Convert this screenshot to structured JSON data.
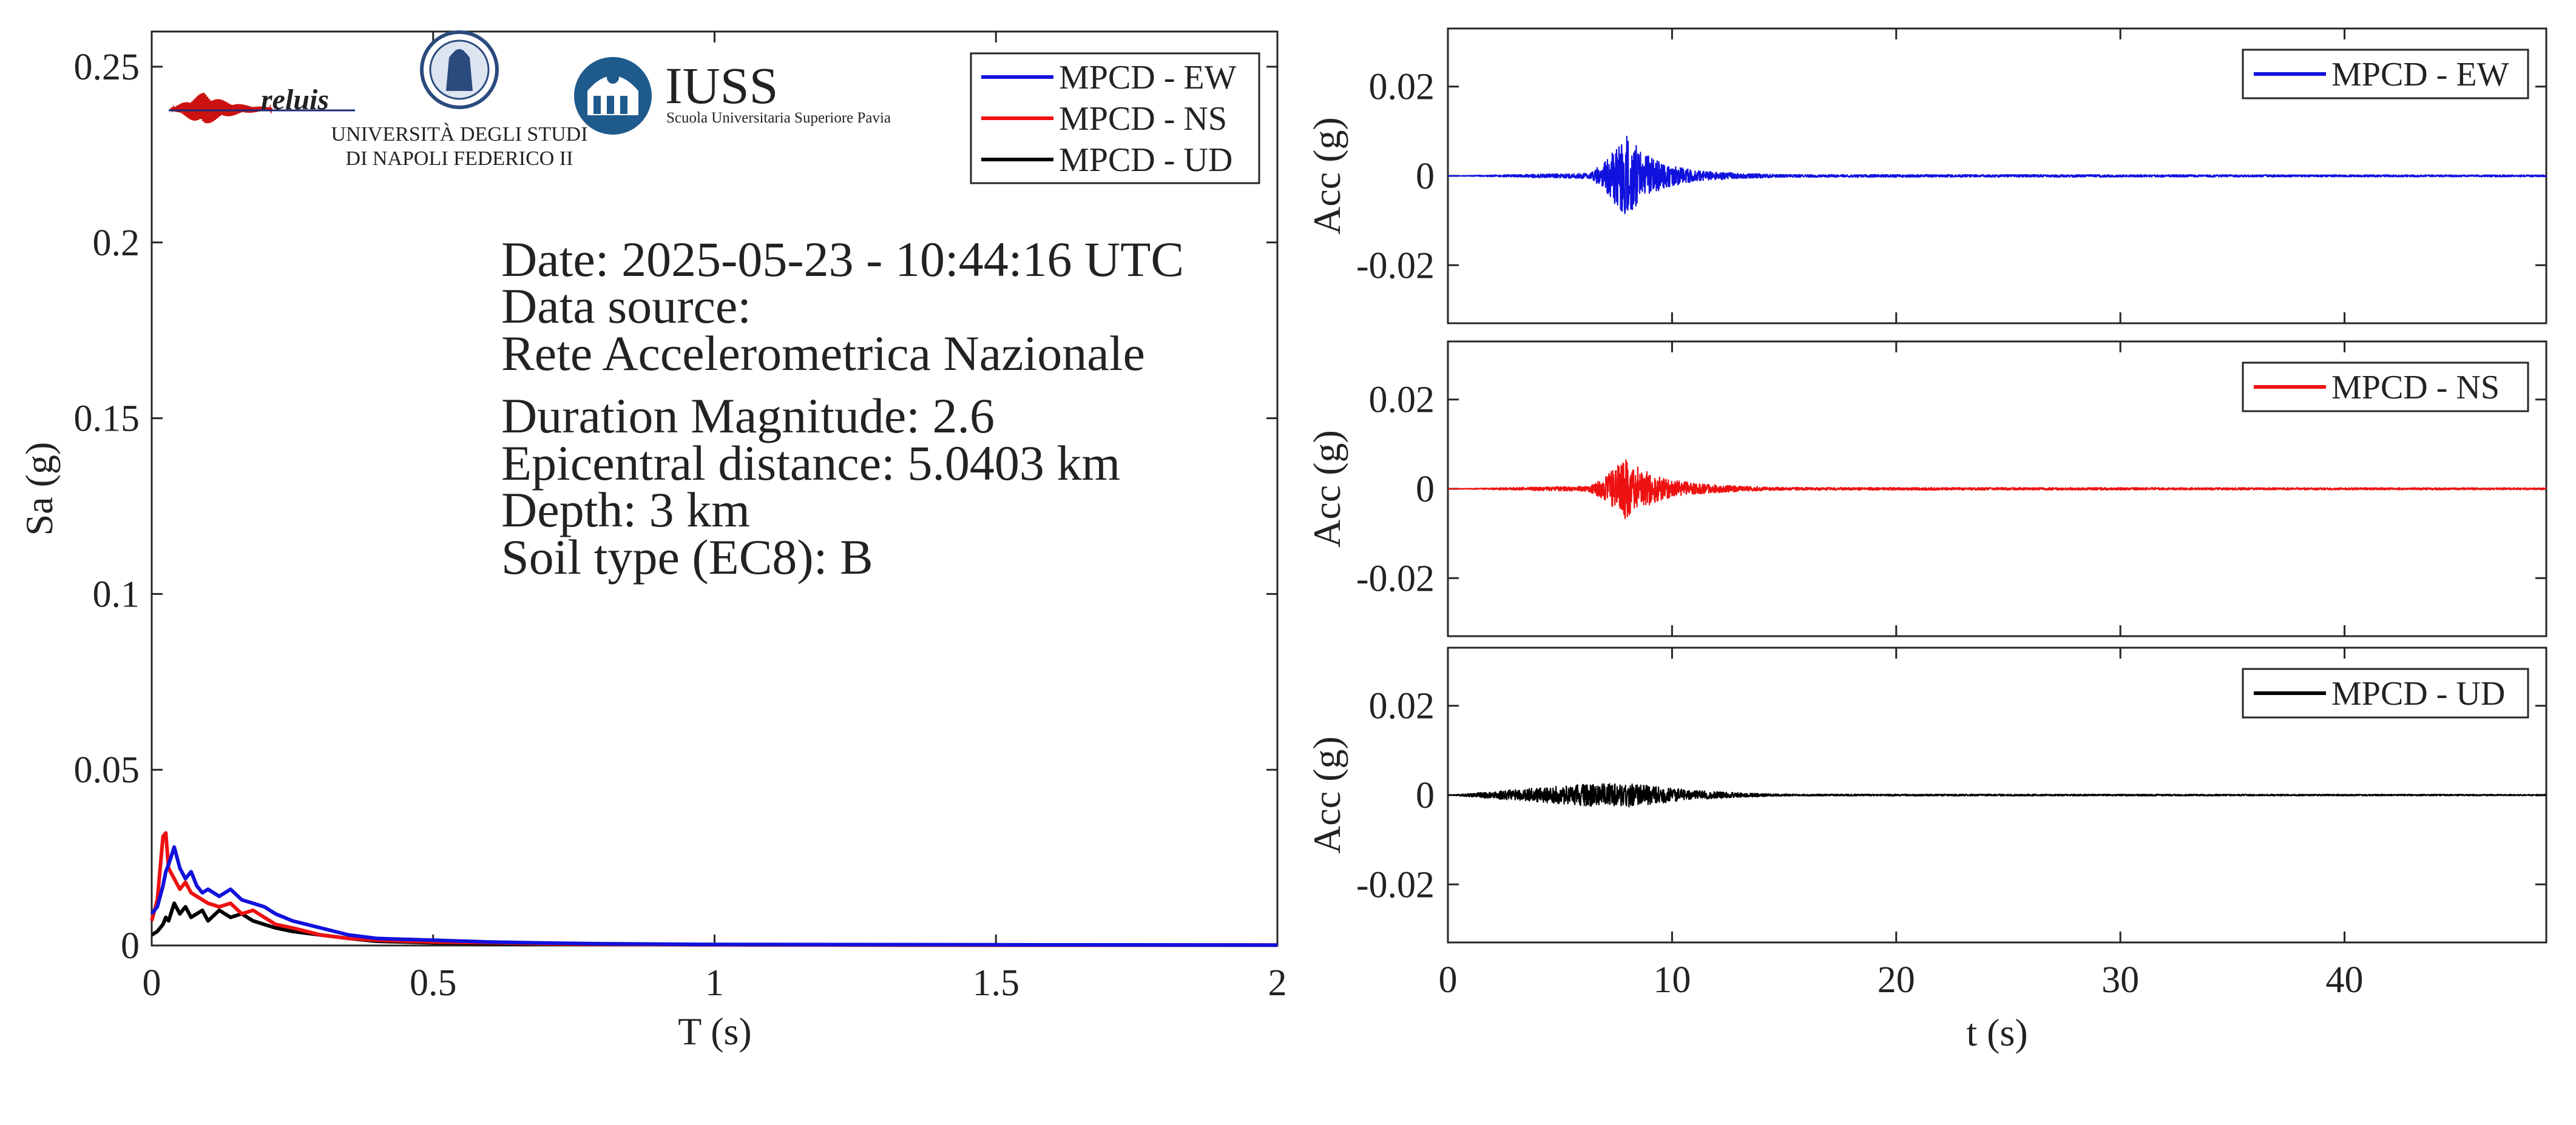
{
  "info": {
    "lines": [
      "Date: 2025-05-23 - 10:44:16 UTC",
      "Data source:",
      "Rete Accelerometrica Nazionale",
      "Duration Magnitude: 2.6",
      "Epicentral distance: 5.0403 km",
      "Depth: 3 km",
      "Soil type (EC8): B"
    ]
  },
  "logos": {
    "reluis": "reluis",
    "unina_line1": "UNIVERSITÀ DEGLI STUDI",
    "unina_line2": "DI NAPOLI FEDERICO II",
    "iuss": "IUSS",
    "iuss_sub": "Scuola Universitaria Superiore Pavia"
  },
  "colors": {
    "EW": "#1111dd",
    "NS": "#ee1111",
    "UD": "#000000"
  },
  "chart_data": [
    {
      "type": "line",
      "xlabel": "T (s)",
      "ylabel": "Sa (g)",
      "xlim": [
        0,
        2
      ],
      "ylim": [
        0,
        0.26
      ],
      "xticks": [
        0,
        0.5,
        1,
        1.5,
        2
      ],
      "xtick_labels": [
        "0",
        "0.5",
        "1",
        "1.5",
        "2"
      ],
      "yticks": [
        0,
        0.05,
        0.1,
        0.15,
        0.2,
        0.25
      ],
      "ytick_labels": [
        "0",
        "0.05",
        "0.1",
        "0.15",
        "0.2",
        "0.25"
      ],
      "legend_position": "top-right",
      "x": [
        0,
        0.01,
        0.02,
        0.025,
        0.03,
        0.04,
        0.05,
        0.06,
        0.07,
        0.08,
        0.09,
        0.1,
        0.12,
        0.14,
        0.16,
        0.18,
        0.2,
        0.22,
        0.25,
        0.3,
        0.35,
        0.4,
        0.5,
        0.6,
        0.7,
        0.8,
        1.0,
        1.5,
        2.0
      ],
      "series": [
        {
          "name": "MPCD - EW",
          "color_key": "EW",
          "values": [
            0.009,
            0.011,
            0.017,
            0.021,
            0.023,
            0.028,
            0.022,
            0.019,
            0.021,
            0.017,
            0.015,
            0.016,
            0.014,
            0.016,
            0.013,
            0.012,
            0.011,
            0.009,
            0.007,
            0.005,
            0.003,
            0.002,
            0.0015,
            0.001,
            0.0007,
            0.0005,
            0.0003,
            0.0002,
            0.0001
          ]
        },
        {
          "name": "MPCD - NS",
          "color_key": "NS",
          "values": [
            0.007,
            0.013,
            0.031,
            0.032,
            0.022,
            0.019,
            0.016,
            0.018,
            0.015,
            0.014,
            0.013,
            0.012,
            0.011,
            0.012,
            0.009,
            0.01,
            0.008,
            0.006,
            0.005,
            0.003,
            0.002,
            0.0015,
            0.001,
            0.0008,
            0.0005,
            0.0004,
            0.0002,
            0.0001,
            0.0001
          ]
        },
        {
          "name": "MPCD - UD",
          "color_key": "UD",
          "values": [
            0.003,
            0.004,
            0.006,
            0.008,
            0.007,
            0.012,
            0.009,
            0.011,
            0.008,
            0.009,
            0.01,
            0.007,
            0.01,
            0.008,
            0.009,
            0.007,
            0.006,
            0.005,
            0.004,
            0.003,
            0.002,
            0.0012,
            0.0008,
            0.0005,
            0.0004,
            0.0003,
            0.0002,
            0.0001,
            0.0001
          ]
        }
      ]
    },
    {
      "type": "line",
      "ylabel": "Acc (g)",
      "xlim": [
        0,
        49
      ],
      "ylim": [
        -0.033,
        0.033
      ],
      "yticks": [
        0.02,
        0,
        -0.02
      ],
      "ytick_labels": [
        "0.02",
        "0",
        "-0.02"
      ],
      "legend_position": "top-right",
      "series": [
        {
          "name": "MPCD - EW",
          "color_key": "EW",
          "envelope": {
            "t": [
              0,
              6.3,
              7.0,
              7.9,
              8.6,
              9.5,
              11,
              13,
              15,
              49
            ],
            "amp": [
              0.0,
              0.0006,
              0.003,
              0.01,
              0.0055,
              0.003,
              0.0012,
              0.0006,
              0.0003,
              0.0002
            ]
          }
        }
      ]
    },
    {
      "type": "line",
      "ylabel": "Acc (g)",
      "xlim": [
        0,
        49
      ],
      "ylim": [
        -0.033,
        0.033
      ],
      "yticks": [
        0.02,
        0,
        -0.02
      ],
      "ytick_labels": [
        "0.02",
        "0",
        "-0.02"
      ],
      "legend_position": "top-right",
      "series": [
        {
          "name": "MPCD - NS",
          "color_key": "NS",
          "envelope": {
            "t": [
              0,
              6.3,
              7.0,
              7.9,
              8.6,
              9.5,
              11,
              13,
              15,
              49
            ],
            "amp": [
              0.0,
              0.0006,
              0.0025,
              0.007,
              0.0045,
              0.0025,
              0.0012,
              0.0006,
              0.0003,
              0.0002
            ]
          }
        }
      ]
    },
    {
      "type": "line",
      "xlabel": "t (s)",
      "ylabel": "Acc (g)",
      "xlim": [
        0,
        49
      ],
      "ylim": [
        -0.033,
        0.033
      ],
      "xticks": [
        0,
        10,
        20,
        30,
        40
      ],
      "xtick_labels": [
        "0",
        "10",
        "20",
        "30",
        "40"
      ],
      "yticks": [
        0.02,
        0,
        -0.02
      ],
      "ytick_labels": [
        "0.02",
        "0",
        "-0.02"
      ],
      "legend_position": "top-right",
      "series": [
        {
          "name": "MPCD - UD",
          "color_key": "UD",
          "envelope": {
            "t": [
              0,
              6.3,
              7.0,
              8.0,
              9.5,
              11,
              13,
              15,
              49
            ],
            "amp": [
              0.0,
              0.0025,
              0.0025,
              0.0027,
              0.0018,
              0.001,
              0.0005,
              0.0002,
              0.00015
            ]
          }
        }
      ]
    }
  ]
}
